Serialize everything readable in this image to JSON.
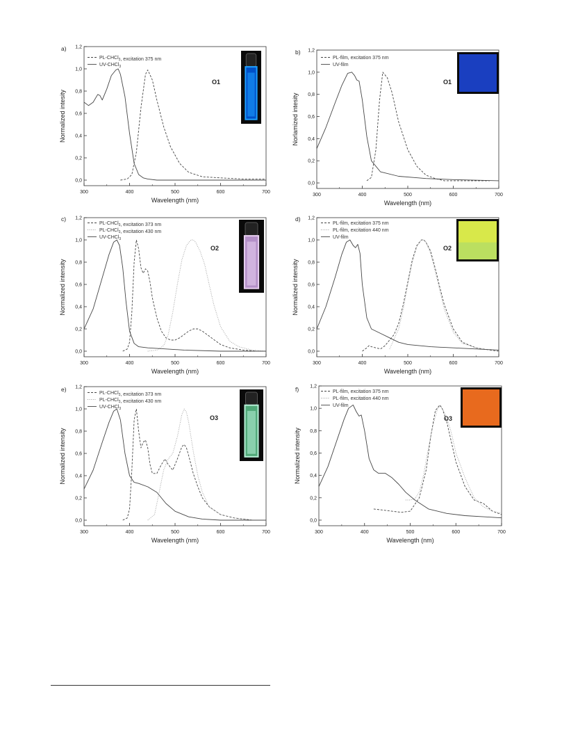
{
  "panel_letters": [
    "a)",
    "b)",
    "c)",
    "d)",
    "e)",
    "f)"
  ],
  "colors": {
    "line": "#444444",
    "light_line": "#9a9a9a",
    "axis": "#333333",
    "inset_blue_bg": "#1a3fc0",
    "inset_yellow_bg": "#d8e84a",
    "inset_orange_bg": "#e86a1e"
  },
  "chart_data": [
    {
      "type": "line",
      "panel": "a)",
      "compound": "O1",
      "xlabel": "Wavelength (nm)",
      "ylabel": "Normalized intesity",
      "xlim": [
        300,
        700
      ],
      "ylim": [
        -0.05,
        1.2
      ],
      "x_ticks": [
        "300",
        "400",
        "500",
        "600",
        "700"
      ],
      "y_ticks": [
        "0,0",
        "0,2",
        "0,4",
        "0,6",
        "0,8",
        "1,0",
        "1,2"
      ],
      "legend_position": "top-left",
      "inset": "cuvette-blue",
      "series": [
        {
          "name": "PL-CHCl3, excitation 375 nm",
          "style": "dashed",
          "x": [
            380,
            395,
            405,
            415,
            425,
            435,
            440,
            450,
            460,
            475,
            490,
            510,
            530,
            560,
            600,
            650,
            700
          ],
          "y": [
            0.0,
            0.01,
            0.05,
            0.25,
            0.65,
            0.95,
            0.99,
            0.9,
            0.72,
            0.48,
            0.3,
            0.15,
            0.07,
            0.03,
            0.02,
            0.01,
            0.01
          ]
        },
        {
          "name": "UV-CHCl3",
          "style": "solid",
          "x": [
            300,
            310,
            320,
            330,
            335,
            340,
            350,
            360,
            370,
            375,
            380,
            390,
            400,
            410,
            420,
            430,
            440,
            460,
            500,
            600,
            700
          ],
          "y": [
            0.7,
            0.67,
            0.7,
            0.77,
            0.76,
            0.72,
            0.82,
            0.94,
            0.99,
            1.0,
            0.95,
            0.75,
            0.42,
            0.15,
            0.05,
            0.02,
            0.01,
            0.0,
            0.0,
            0.0,
            0.0
          ]
        }
      ]
    },
    {
      "type": "line",
      "panel": "b)",
      "compound": "O1",
      "xlabel": "Wavelength (nm)",
      "ylabel": "Norlamized intesity",
      "xlim": [
        300,
        700
      ],
      "ylim": [
        -0.05,
        1.2
      ],
      "x_ticks": [
        "300",
        "400",
        "500",
        "600",
        "700"
      ],
      "y_ticks": [
        "0,0",
        "0,2",
        "0,4",
        "0,6",
        "0,8",
        "1,0",
        "1,2"
      ],
      "legend_position": "top-left",
      "inset": "film-blue",
      "series": [
        {
          "name": "PL-film, excitation 375 nm",
          "style": "dashed",
          "x": [
            410,
            420,
            430,
            438,
            445,
            455,
            465,
            480,
            500,
            520,
            540,
            560,
            580,
            620,
            680
          ],
          "y": [
            0.02,
            0.05,
            0.3,
            0.75,
            1.0,
            0.95,
            0.82,
            0.55,
            0.3,
            0.15,
            0.07,
            0.04,
            0.02,
            0.02,
            0.02
          ]
        },
        {
          "name": "UV-film",
          "style": "solid",
          "x": [
            300,
            320,
            340,
            355,
            368,
            377,
            383,
            388,
            393,
            400,
            410,
            420,
            440,
            480,
            540,
            600,
            700
          ],
          "y": [
            0.31,
            0.5,
            0.72,
            0.88,
            0.99,
            1.0,
            0.97,
            0.93,
            0.92,
            0.75,
            0.42,
            0.2,
            0.1,
            0.06,
            0.04,
            0.03,
            0.02
          ]
        }
      ]
    },
    {
      "type": "line",
      "panel": "c)",
      "compound": "O2",
      "xlabel": "Wavelength (nm)",
      "ylabel": "Normalized intensity",
      "xlim": [
        300,
        700
      ],
      "ylim": [
        -0.05,
        1.2
      ],
      "x_ticks": [
        "300",
        "400",
        "500",
        "600",
        "700"
      ],
      "y_ticks": [
        "0,0",
        "0,2",
        "0,4",
        "0,6",
        "0,8",
        "1,0",
        "1,2"
      ],
      "legend_position": "top-left",
      "inset": "cuvette-pink",
      "series": [
        {
          "name": "PL-CHCl3, excitation 373 nm",
          "style": "dashed",
          "x": [
            385,
            395,
            400,
            405,
            410,
            415,
            420,
            425,
            430,
            435,
            440,
            445,
            450,
            460,
            470,
            480,
            490,
            500,
            510,
            520,
            530,
            540,
            550,
            560,
            570,
            580,
            600,
            620,
            650,
            680
          ],
          "y": [
            0.0,
            0.02,
            0.08,
            0.35,
            0.8,
            1.0,
            0.92,
            0.75,
            0.7,
            0.74,
            0.72,
            0.62,
            0.48,
            0.3,
            0.18,
            0.12,
            0.1,
            0.1,
            0.12,
            0.15,
            0.18,
            0.2,
            0.2,
            0.18,
            0.15,
            0.12,
            0.06,
            0.03,
            0.01,
            0.0
          ]
        },
        {
          "name": "PL-CHCl3, excitation 430 nm",
          "style": "dotted",
          "x": [
            440,
            460,
            475,
            485,
            495,
            505,
            515,
            525,
            535,
            540,
            545,
            555,
            565,
            575,
            585,
            600,
            620,
            640,
            670,
            700
          ],
          "y": [
            0.0,
            0.01,
            0.05,
            0.15,
            0.35,
            0.6,
            0.82,
            0.95,
            1.0,
            1.0,
            0.98,
            0.9,
            0.78,
            0.6,
            0.42,
            0.22,
            0.09,
            0.04,
            0.01,
            0.0
          ]
        },
        {
          "name": "UV-CHCl3",
          "style": "solid",
          "x": [
            300,
            320,
            340,
            355,
            365,
            372,
            378,
            385,
            392,
            400,
            410,
            420,
            440,
            480,
            520,
            600,
            700
          ],
          "y": [
            0.2,
            0.38,
            0.66,
            0.87,
            0.98,
            1.0,
            0.95,
            0.75,
            0.45,
            0.18,
            0.07,
            0.04,
            0.03,
            0.02,
            0.01,
            0.0,
            0.0
          ]
        }
      ]
    },
    {
      "type": "line",
      "panel": "d)",
      "compound": "O2",
      "xlabel": "Wavelength (nm)",
      "ylabel": "Normalized intensity",
      "xlim": [
        300,
        700
      ],
      "ylim": [
        -0.05,
        1.2
      ],
      "x_ticks": [
        "300",
        "400",
        "500",
        "600",
        "700"
      ],
      "y_ticks": [
        "0,0",
        "0,2",
        "0,4",
        "0,6",
        "0,8",
        "1,0",
        "1,2"
      ],
      "legend_position": "top-left",
      "inset": "film-yellow",
      "series": [
        {
          "name": "PL-film, excitation 375 nm",
          "style": "dashed",
          "x": [
            400,
            410,
            415,
            420,
            430,
            440,
            450,
            460,
            470,
            480,
            490,
            500,
            510,
            520,
            530,
            535,
            540,
            550,
            560,
            570,
            580,
            600,
            620,
            650,
            680,
            700
          ],
          "y": [
            0.0,
            0.03,
            0.05,
            0.04,
            0.03,
            0.02,
            0.05,
            0.1,
            0.15,
            0.25,
            0.42,
            0.62,
            0.82,
            0.95,
            1.0,
            1.0,
            0.98,
            0.9,
            0.75,
            0.58,
            0.42,
            0.2,
            0.08,
            0.03,
            0.01,
            0.0
          ]
        },
        {
          "name": "PL-film, excitation 440 nm",
          "style": "dotted",
          "x": [
            460,
            480,
            490,
            500,
            510,
            520,
            530,
            535,
            540,
            550,
            560,
            570,
            580,
            600,
            620,
            650,
            680,
            700
          ],
          "y": [
            0.02,
            0.2,
            0.38,
            0.6,
            0.8,
            0.94,
            1.0,
            1.0,
            0.98,
            0.88,
            0.72,
            0.55,
            0.38,
            0.17,
            0.07,
            0.03,
            0.01,
            0.0
          ]
        },
        {
          "name": "UV-film",
          "style": "solid",
          "x": [
            300,
            320,
            340,
            355,
            365,
            373,
            380,
            385,
            390,
            395,
            400,
            410,
            420,
            440,
            460,
            480,
            500,
            550,
            600,
            650,
            700
          ],
          "y": [
            0.2,
            0.4,
            0.66,
            0.87,
            0.98,
            1.0,
            0.95,
            0.93,
            0.96,
            0.88,
            0.6,
            0.3,
            0.2,
            0.16,
            0.12,
            0.08,
            0.06,
            0.04,
            0.03,
            0.02,
            0.01
          ]
        }
      ]
    },
    {
      "type": "line",
      "panel": "e)",
      "compound": "O3",
      "xlabel": "Wavelength (nm)",
      "ylabel": "Normalized intensity",
      "xlim": [
        300,
        700
      ],
      "ylim": [
        -0.05,
        1.2
      ],
      "x_ticks": [
        "300",
        "400",
        "500",
        "600",
        "700"
      ],
      "y_ticks": [
        "0,0",
        "0,2",
        "0,4",
        "0,6",
        "0,8",
        "1,0",
        "1,2"
      ],
      "legend_position": "top-left",
      "inset": "cuvette-green",
      "series": [
        {
          "name": "PL-CHCl3, excitation 373 nm",
          "style": "dashed",
          "x": [
            385,
            395,
            400,
            405,
            410,
            415,
            420,
            425,
            430,
            435,
            440,
            445,
            450,
            460,
            470,
            478,
            485,
            495,
            505,
            515,
            520,
            525,
            530,
            540,
            550,
            560,
            575,
            600,
            630,
            670,
            700
          ],
          "y": [
            0.0,
            0.02,
            0.1,
            0.45,
            0.9,
            1.0,
            0.8,
            0.65,
            0.7,
            0.72,
            0.65,
            0.5,
            0.42,
            0.42,
            0.5,
            0.55,
            0.5,
            0.45,
            0.55,
            0.66,
            0.68,
            0.65,
            0.58,
            0.42,
            0.3,
            0.2,
            0.12,
            0.05,
            0.02,
            0.0,
            0.0
          ]
        },
        {
          "name": "PL-CHCl3, excitation 430 nm",
          "style": "dotted",
          "x": [
            440,
            455,
            465,
            475,
            485,
            495,
            505,
            515,
            520,
            525,
            530,
            540,
            550,
            560,
            575,
            600,
            630,
            670,
            700
          ],
          "y": [
            0.0,
            0.05,
            0.25,
            0.45,
            0.55,
            0.6,
            0.75,
            0.95,
            1.0,
            0.97,
            0.88,
            0.62,
            0.4,
            0.25,
            0.12,
            0.05,
            0.02,
            0.0,
            0.0
          ]
        },
        {
          "name": "UV-CHCl3",
          "style": "solid",
          "x": [
            300,
            320,
            340,
            355,
            365,
            372,
            380,
            390,
            400,
            410,
            420,
            440,
            460,
            480,
            500,
            530,
            560,
            600,
            700
          ],
          "y": [
            0.28,
            0.45,
            0.7,
            0.88,
            0.98,
            1.0,
            0.9,
            0.6,
            0.4,
            0.34,
            0.33,
            0.3,
            0.25,
            0.15,
            0.08,
            0.03,
            0.01,
            0.0,
            0.0
          ]
        }
      ]
    },
    {
      "type": "line",
      "panel": "f)",
      "compound": "O3",
      "xlabel": "Wavelength (nm)",
      "ylabel": "Normalized intensity",
      "xlim": [
        300,
        700
      ],
      "ylim": [
        -0.05,
        1.2
      ],
      "x_ticks": [
        "300",
        "400",
        "500",
        "600",
        "700"
      ],
      "y_ticks": [
        "0,0",
        "0,2",
        "0,4",
        "0,6",
        "0,8",
        "1,0",
        "1,2"
      ],
      "legend_position": "top-left",
      "inset": "film-orange",
      "series": [
        {
          "name": "PL-film, excitation 375 nm",
          "style": "dashed",
          "x": [
            420,
            440,
            460,
            480,
            500,
            520,
            535,
            545,
            555,
            565,
            570,
            580,
            590,
            600,
            620,
            640,
            660,
            680,
            700
          ],
          "y": [
            0.1,
            0.09,
            0.08,
            0.07,
            0.08,
            0.2,
            0.45,
            0.75,
            0.98,
            1.03,
            1.0,
            0.88,
            0.7,
            0.52,
            0.3,
            0.18,
            0.15,
            0.08,
            0.05
          ]
        },
        {
          "name": "PL-film, excitation 440 nm",
          "style": "dotted",
          "x": [
            490,
            500,
            510,
            520,
            530,
            540,
            550,
            560,
            565,
            570,
            580,
            590,
            600,
            620,
            640,
            660,
            680,
            700
          ],
          "y": [
            0.18,
            0.18,
            0.19,
            0.25,
            0.42,
            0.65,
            0.85,
            1.0,
            1.02,
            1.0,
            0.92,
            0.78,
            0.6,
            0.38,
            0.2,
            0.12,
            0.08,
            0.06
          ]
        },
        {
          "name": "UV-film",
          "style": "solid",
          "x": [
            300,
            320,
            340,
            355,
            365,
            375,
            382,
            388,
            393,
            400,
            410,
            420,
            430,
            445,
            460,
            475,
            490,
            510,
            540,
            580,
            620,
            660,
            700
          ],
          "y": [
            0.3,
            0.48,
            0.72,
            0.9,
            1.0,
            1.03,
            0.97,
            0.93,
            0.94,
            0.8,
            0.55,
            0.45,
            0.42,
            0.42,
            0.38,
            0.32,
            0.25,
            0.18,
            0.1,
            0.06,
            0.04,
            0.03,
            0.02
          ]
        }
      ]
    }
  ]
}
